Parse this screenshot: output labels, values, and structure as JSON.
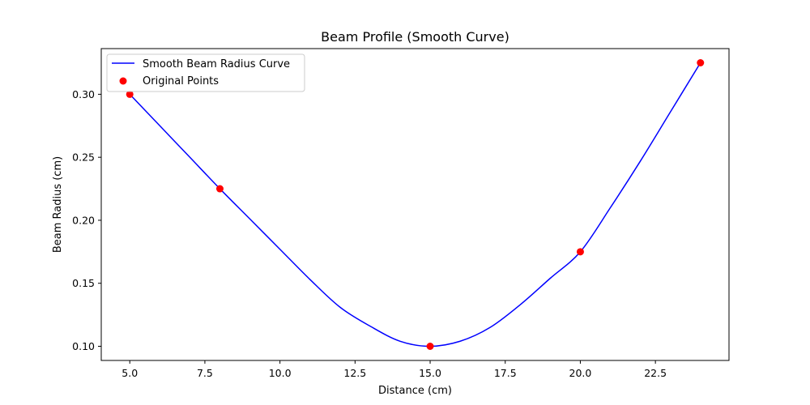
{
  "chart_data": {
    "type": "line",
    "title": "Beam Profile (Smooth Curve)",
    "xlabel": "Distance (cm)",
    "ylabel": "Beam Radius (cm)",
    "xlim": [
      4.05,
      24.95
    ],
    "ylim": [
      0.08875,
      0.33625
    ],
    "x_ticks": [
      5.0,
      7.5,
      10.0,
      12.5,
      15.0,
      17.5,
      20.0,
      22.5
    ],
    "x_tick_labels": [
      "5.0",
      "7.5",
      "10.0",
      "12.5",
      "15.0",
      "17.5",
      "20.0",
      "22.5"
    ],
    "y_ticks": [
      0.1,
      0.15,
      0.2,
      0.25,
      0.3
    ],
    "y_tick_labels": [
      "0.10",
      "0.15",
      "0.20",
      "0.25",
      "0.30"
    ],
    "grid": false,
    "legend_position": "upper-left",
    "series": [
      {
        "name": "Smooth Beam Radius Curve",
        "kind": "line",
        "color": "#0000ff",
        "x": [
          5,
          6,
          7,
          8,
          9,
          10,
          11,
          12,
          13,
          14,
          15,
          16,
          17,
          18,
          19,
          20,
          21,
          22,
          23,
          24
        ],
        "y": [
          0.3,
          0.275,
          0.25,
          0.225,
          0.201,
          0.177,
          0.153,
          0.131,
          0.116,
          0.104,
          0.1,
          0.104,
          0.115,
          0.133,
          0.154,
          0.175,
          0.21,
          0.247,
          0.286,
          0.325
        ]
      },
      {
        "name": "Original Points",
        "kind": "scatter",
        "color": "#ff0000",
        "x": [
          5,
          8,
          15,
          20,
          24
        ],
        "y": [
          0.3,
          0.225,
          0.1,
          0.175,
          0.325
        ]
      }
    ]
  }
}
